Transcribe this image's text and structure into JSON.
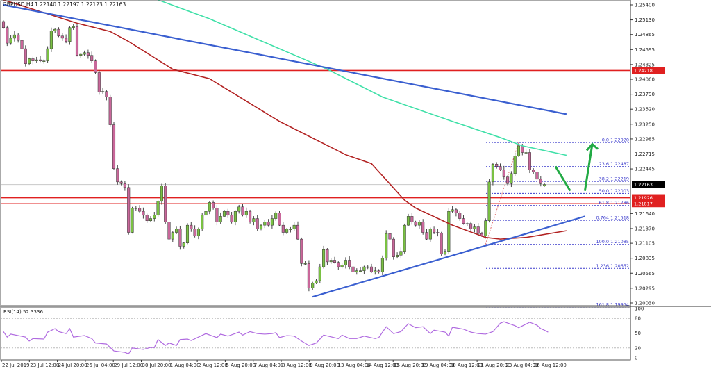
{
  "chart_data": {
    "type": "candlestick",
    "header": {
      "symbol": "GBPUSD,H4",
      "ohlc": "1.22140 1.22197 1.22123 1.22163"
    },
    "price_axis": {
      "range": [
        1.2003,
        1.254
      ],
      "ticks": [
        "1.25400",
        "1.25130",
        "1.24865",
        "1.24595",
        "1.24325",
        "1.24060",
        "1.23790",
        "1.23520",
        "1.23250",
        "1.22985",
        "1.22715",
        "1.22445",
        "1.21640",
        "1.21370",
        "1.21105",
        "1.20835",
        "1.20565",
        "1.20295",
        "1.20030"
      ]
    },
    "time_axis": {
      "ticks": [
        "22 Jul 2019",
        "23 Jul 12:00",
        "24 Jul 20:00",
        "26 Jul 04:00",
        "29 Jul 12:00",
        "30 Jul 20:00",
        "1 Aug 04:00",
        "2 Aug 12:00",
        "5 Aug 20:00",
        "7 Aug 04:00",
        "8 Aug 12:00",
        "9 Aug 20:00",
        "13 Aug 04:00",
        "14 Aug 12:00",
        "15 Aug 20:00",
        "19 Aug 04:00",
        "20 Aug 12:00",
        "21 Aug 20:00",
        "23 Aug 04:00",
        "26 Aug 12:00"
      ]
    },
    "closes": [
      1.2499,
      1.2471,
      1.248,
      1.2486,
      1.2476,
      1.2461,
      1.2434,
      1.2443,
      1.2439,
      1.2441,
      1.2439,
      1.2439,
      1.2461,
      1.2493,
      1.2496,
      1.2484,
      1.248,
      1.2474,
      1.2499,
      1.2501,
      1.2449,
      1.2451,
      1.2454,
      1.2449,
      1.2439,
      1.2418,
      1.2383,
      1.2384,
      1.2374,
      1.2324,
      1.2245,
      1.2221,
      1.2218,
      1.2211,
      1.213,
      1.2174,
      1.2174,
      1.2168,
      1.2161,
      1.2151,
      1.2155,
      1.2161,
      1.2186,
      1.2214,
      1.2149,
      1.2118,
      1.213,
      1.2136,
      1.2105,
      1.2111,
      1.2143,
      1.2136,
      1.2124,
      1.2136,
      1.2161,
      1.2168,
      1.2184,
      1.2174,
      1.2149,
      1.2159,
      1.2168,
      1.2161,
      1.2149,
      1.2168,
      1.2176,
      1.2161,
      1.2168,
      1.2149,
      1.2155,
      1.2136,
      1.2143,
      1.2149,
      1.2143,
      1.2155,
      1.2165,
      1.2143,
      1.213,
      1.2136,
      1.2136,
      1.2143,
      1.2118,
      1.2074,
      1.2074,
      1.203,
      1.2039,
      1.2043,
      1.2068,
      1.2099,
      1.2077,
      1.208,
      1.2076,
      1.2068,
      1.2071,
      1.208,
      1.2068,
      1.2059,
      1.2061,
      1.2061,
      1.2068,
      1.2068,
      1.2059,
      1.2061,
      1.2059,
      1.2084,
      1.2128,
      1.2118,
      1.2086,
      1.2089,
      1.2096,
      1.2143,
      1.2159,
      1.2149,
      1.2143,
      1.2149,
      1.213,
      1.2118,
      1.2136,
      1.213,
      1.2129,
      1.2091,
      1.2096,
      1.2168,
      1.2171,
      1.2165,
      1.2155,
      1.2146,
      1.2146,
      1.2136,
      1.214,
      1.2128,
      1.2124,
      1.2151,
      1.2221,
      1.2253,
      1.2249,
      1.2243,
      1.223,
      1.2218,
      1.2236,
      1.2268,
      1.2286,
      1.2274,
      1.2274,
      1.2243,
      1.2239,
      1.2226,
      1.2218,
      1.2216
    ],
    "last_bar": {
      "open": 1.2214,
      "high": 1.22197,
      "low": 1.22123,
      "close": 1.22163
    },
    "moving_averages": [
      {
        "color": "#b22222",
        "points": [
          [
            0,
            1.2549
          ],
          [
            20,
            1.2507
          ],
          [
            29,
            1.2492
          ],
          [
            34,
            1.2474
          ],
          [
            46,
            1.2424
          ],
          [
            56,
            1.2407
          ],
          [
            75,
            1.233
          ],
          [
            93,
            1.227
          ],
          [
            100,
            1.2254
          ],
          [
            109,
            1.2188
          ],
          [
            112,
            1.2174
          ],
          [
            122,
            1.2143
          ],
          [
            131,
            1.2121
          ],
          [
            135,
            1.2118
          ],
          [
            142,
            1.2121
          ],
          [
            153,
            1.2133
          ]
        ]
      },
      {
        "color": "#3fe0a8",
        "points": [
          [
            42,
            1.2549
          ],
          [
            56,
            1.2515
          ],
          [
            75,
            1.2461
          ],
          [
            88,
            1.2424
          ],
          [
            103,
            1.2374
          ],
          [
            122,
            1.233
          ],
          [
            135,
            1.2301
          ],
          [
            141,
            1.2286
          ],
          [
            153,
            1.2269
          ]
        ]
      }
    ],
    "trendlines": [
      {
        "color": "#3a5fd0",
        "from": [
          0,
          1.254
        ],
        "to": [
          153,
          1.2343
        ]
      },
      {
        "color": "#3a5fd0",
        "from": [
          84,
          1.2014
        ],
        "to": [
          158,
          1.2159
        ]
      }
    ],
    "horizontal_levels": [
      {
        "price": "1.24218",
        "color": "#e02020"
      },
      {
        "price": "1.21926",
        "color": "#e02020"
      },
      {
        "price": "1.21817",
        "color": "#e02020"
      }
    ],
    "current_price": {
      "price": "1.22163",
      "color": "#000000"
    },
    "fibonacci": [
      {
        "label": "0.0 1.22920",
        "price": 1.2292
      },
      {
        "label": "23.6 1.22487",
        "price": 1.22487
      },
      {
        "label": "38.2 1.22219",
        "price": 1.22219
      },
      {
        "label": "50.0 1.22003",
        "price": 1.22003
      },
      {
        "label": "61.8 1.21786",
        "price": 1.21786
      },
      {
        "label": "0.764 1.21518",
        "price": 1.21518
      },
      {
        "label": "100.0 1.21085",
        "price": 1.21085
      },
      {
        "label": "1.236 1.20652",
        "price": 1.20652
      },
      {
        "label": "161.8 1.19954",
        "price": 1.19954
      }
    ],
    "annotation_arrows": [
      {
        "color": "#22aa44",
        "from": [
          150,
          1.2249
        ],
        "to": [
          154,
          1.2205
        ],
        "head": false
      },
      {
        "color": "#22aa44",
        "from": [
          158,
          1.2205
        ],
        "to": [
          160,
          1.2289
        ],
        "head": true
      }
    ],
    "rsi": {
      "label": "RSI(14) 52.3336",
      "ticks": [
        "100",
        "80",
        "50",
        "20",
        "0"
      ],
      "levels": [
        80,
        50,
        20
      ],
      "color": "#b06be0",
      "points": [
        [
          0,
          53
        ],
        [
          1,
          42
        ],
        [
          2,
          48
        ],
        [
          6,
          42
        ],
        [
          7,
          34
        ],
        [
          8,
          39
        ],
        [
          11,
          38
        ],
        [
          12,
          52
        ],
        [
          14,
          59
        ],
        [
          15,
          53
        ],
        [
          17,
          49
        ],
        [
          18,
          59
        ],
        [
          19,
          42
        ],
        [
          22,
          45
        ],
        [
          24,
          39
        ],
        [
          25,
          30
        ],
        [
          28,
          28
        ],
        [
          30,
          14
        ],
        [
          33,
          11
        ],
        [
          34,
          8
        ],
        [
          35,
          20
        ],
        [
          38,
          17
        ],
        [
          40,
          21
        ],
        [
          41,
          21
        ],
        [
          42,
          37
        ],
        [
          44,
          25
        ],
        [
          45,
          30
        ],
        [
          47,
          25
        ],
        [
          48,
          37
        ],
        [
          50,
          38
        ],
        [
          51,
          35
        ],
        [
          55,
          49
        ],
        [
          58,
          41
        ],
        [
          59,
          48
        ],
        [
          61,
          44
        ],
        [
          64,
          52
        ],
        [
          65,
          46
        ],
        [
          67,
          53
        ],
        [
          69,
          49
        ],
        [
          71,
          48
        ],
        [
          73,
          49
        ],
        [
          74,
          51
        ],
        [
          75,
          41
        ],
        [
          77,
          45
        ],
        [
          79,
          44
        ],
        [
          81,
          34
        ],
        [
          83,
          25
        ],
        [
          85,
          30
        ],
        [
          87,
          46
        ],
        [
          91,
          39
        ],
        [
          92,
          46
        ],
        [
          94,
          39
        ],
        [
          96,
          39
        ],
        [
          98,
          44
        ],
        [
          101,
          39
        ],
        [
          102,
          41
        ],
        [
          104,
          63
        ],
        [
          106,
          49
        ],
        [
          108,
          53
        ],
        [
          110,
          69
        ],
        [
          112,
          61
        ],
        [
          114,
          63
        ],
        [
          116,
          49
        ],
        [
          117,
          56
        ],
        [
          120,
          52
        ],
        [
          121,
          44
        ],
        [
          122,
          62
        ],
        [
          125,
          58
        ],
        [
          127,
          52
        ],
        [
          129,
          49
        ],
        [
          131,
          48
        ],
        [
          133,
          53
        ],
        [
          135,
          70
        ],
        [
          136,
          73
        ],
        [
          139,
          65
        ],
        [
          140,
          61
        ],
        [
          143,
          72
        ],
        [
          145,
          66
        ],
        [
          146,
          59
        ],
        [
          147,
          56
        ],
        [
          148,
          52
        ]
      ]
    },
    "colors": {
      "bull": "#7ac143",
      "bear": "#c9679a",
      "wick": "#444444",
      "fib": "#3a3acc"
    }
  }
}
